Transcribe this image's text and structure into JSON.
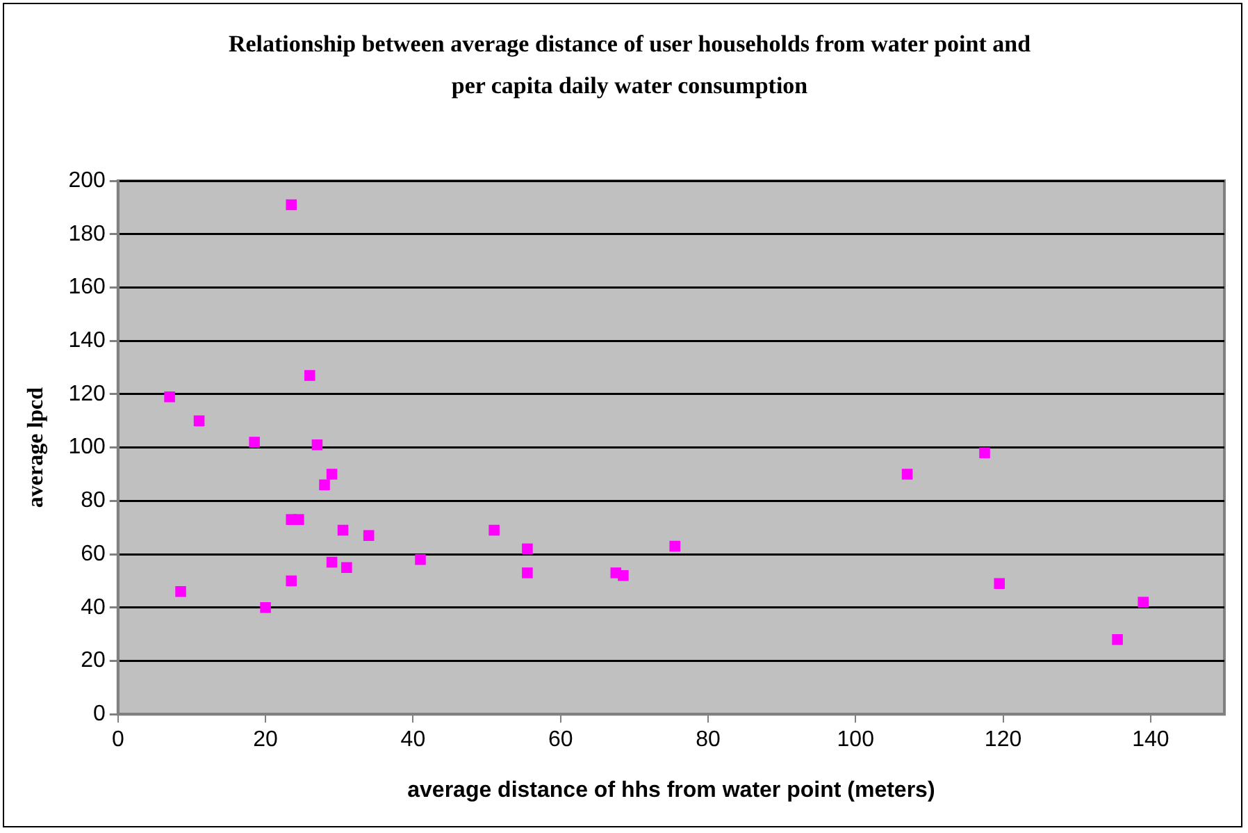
{
  "chart_data": {
    "type": "scatter",
    "title": "Relationship between  average distance of user households from water point and per capita daily water consumption",
    "xlabel": "average distance of hhs from water point (meters)",
    "ylabel": "average lpcd",
    "series": [
      {
        "color": "#ff00ff",
        "x": [
          7,
          8.5,
          11,
          18.5,
          20,
          23.5,
          23.5,
          23.5,
          24.5,
          26,
          27,
          28,
          29,
          29,
          30.5,
          31,
          34,
          41,
          51,
          55.5,
          55.5,
          67.5,
          68.5,
          75.5,
          107,
          117.5,
          119.5,
          135.5,
          139
        ],
        "values": [
          119,
          46,
          110,
          102,
          40,
          191,
          50,
          73,
          73,
          127,
          101,
          86,
          57,
          90,
          69,
          55,
          67,
          58,
          69,
          62,
          53,
          53,
          52,
          63,
          90,
          98,
          49,
          28,
          42
        ]
      }
    ],
    "xlim": [
      0,
      150
    ],
    "xticks": [
      0,
      20,
      40,
      60,
      80,
      100,
      120,
      140
    ],
    "ylim": [
      0,
      200
    ],
    "yticks": [
      0,
      20,
      40,
      60,
      80,
      100,
      120,
      140,
      160,
      180,
      200
    ],
    "grid": "y",
    "marker": "square",
    "legend": false
  }
}
